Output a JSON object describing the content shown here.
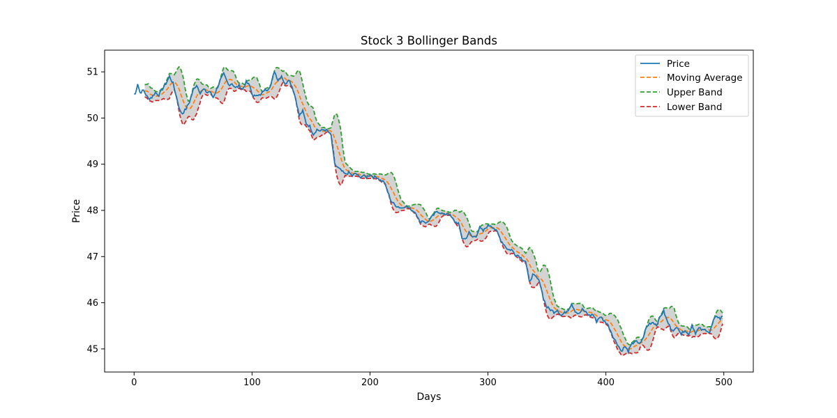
{
  "chart_data": {
    "type": "line",
    "title": "Stock 3 Bollinger Bands",
    "xlabel": "Days",
    "ylabel": "Price",
    "xlim": [
      -25,
      525
    ],
    "ylim": [
      44.5,
      51.47
    ],
    "x_ticks": [
      0,
      100,
      200,
      300,
      400,
      500
    ],
    "y_ticks": [
      45,
      46,
      47,
      48,
      49,
      50,
      51
    ],
    "grid": false,
    "legend_position": "top-right",
    "band_fill_color": "#d3d3d3",
    "window": 10,
    "x": {
      "start": 0,
      "end": 499,
      "step": 1
    },
    "price_anchors": [
      [
        0,
        50.52
      ],
      [
        1,
        50.52
      ],
      [
        3,
        50.75
      ],
      [
        5,
        50.55
      ],
      [
        8,
        50.6
      ],
      [
        12,
        50.42
      ],
      [
        15,
        50.45
      ],
      [
        18,
        50.55
      ],
      [
        21,
        50.5
      ],
      [
        24,
        50.63
      ],
      [
        27,
        50.75
      ],
      [
        30,
        50.9
      ],
      [
        33,
        50.75
      ],
      [
        36,
        50.45
      ],
      [
        39,
        50.15
      ],
      [
        41,
        50.1
      ],
      [
        44,
        50.2
      ],
      [
        47,
        50.35
      ],
      [
        50,
        50.6
      ],
      [
        53,
        50.72
      ],
      [
        56,
        50.55
      ],
      [
        59,
        50.62
      ],
      [
        62,
        50.55
      ],
      [
        64,
        50.58
      ],
      [
        67,
        50.45
      ],
      [
        70,
        50.62
      ],
      [
        73,
        50.82
      ],
      [
        76,
        50.95
      ],
      [
        80,
        50.72
      ],
      [
        83,
        50.75
      ],
      [
        86,
        50.65
      ],
      [
        89,
        50.7
      ],
      [
        92,
        50.62
      ],
      [
        95,
        50.78
      ],
      [
        98,
        50.7
      ],
      [
        101,
        50.45
      ],
      [
        104,
        50.52
      ],
      [
        107,
        50.48
      ],
      [
        110,
        50.6
      ],
      [
        113,
        50.62
      ],
      [
        116,
        50.72
      ],
      [
        119,
        51.02
      ],
      [
        122,
        50.82
      ],
      [
        125,
        50.92
      ],
      [
        128,
        50.72
      ],
      [
        131,
        50.85
      ],
      [
        134,
        50.68
      ],
      [
        137,
        50.42
      ],
      [
        140,
        50.05
      ],
      [
        143,
        50.15
      ],
      [
        146,
        49.88
      ],
      [
        149,
        49.82
      ],
      [
        152,
        49.65
      ],
      [
        155,
        49.75
      ],
      [
        158,
        49.72
      ],
      [
        161,
        49.75
      ],
      [
        164,
        49.72
      ],
      [
        167,
        49.62
      ],
      [
        170,
        49.0
      ],
      [
        173,
        48.92
      ],
      [
        176,
        48.85
      ],
      [
        179,
        48.78
      ],
      [
        182,
        48.82
      ],
      [
        185,
        48.75
      ],
      [
        188,
        48.8
      ],
      [
        191,
        48.72
      ],
      [
        194,
        48.75
      ],
      [
        197,
        48.72
      ],
      [
        200,
        48.78
      ],
      [
        203,
        48.72
      ],
      [
        206,
        48.72
      ],
      [
        209,
        48.65
      ],
      [
        212,
        48.62
      ],
      [
        215,
        48.4
      ],
      [
        218,
        48.2
      ],
      [
        221,
        48.12
      ],
      [
        224,
        48.08
      ],
      [
        227,
        48.05
      ],
      [
        230,
        48.1
      ],
      [
        233,
        48.05
      ],
      [
        236,
        48.0
      ],
      [
        239,
        47.95
      ],
      [
        242,
        47.75
      ],
      [
        245,
        47.78
      ],
      [
        248,
        47.72
      ],
      [
        251,
        47.82
      ],
      [
        254,
        47.9
      ],
      [
        257,
        47.98
      ],
      [
        260,
        47.95
      ],
      [
        263,
        47.9
      ],
      [
        266,
        47.95
      ],
      [
        269,
        47.85
      ],
      [
        272,
        47.75
      ],
      [
        275,
        47.72
      ],
      [
        278,
        47.4
      ],
      [
        281,
        47.38
      ],
      [
        284,
        47.52
      ],
      [
        287,
        47.42
      ],
      [
        290,
        47.45
      ],
      [
        293,
        47.62
      ],
      [
        296,
        47.55
      ],
      [
        299,
        47.65
      ],
      [
        302,
        47.68
      ],
      [
        305,
        47.62
      ],
      [
        308,
        47.52
      ],
      [
        311,
        47.35
      ],
      [
        314,
        47.25
      ],
      [
        317,
        47.15
      ],
      [
        320,
        47.15
      ],
      [
        323,
        47.05
      ],
      [
        326,
        47.02
      ],
      [
        329,
        46.95
      ],
      [
        332,
        46.9
      ],
      [
        335,
        46.45
      ],
      [
        338,
        46.6
      ],
      [
        341,
        46.55
      ],
      [
        344,
        46.45
      ],
      [
        347,
        46.1
      ],
      [
        350,
        45.9
      ],
      [
        353,
        45.85
      ],
      [
        356,
        45.8
      ],
      [
        359,
        45.85
      ],
      [
        362,
        45.72
      ],
      [
        365,
        45.78
      ],
      [
        368,
        45.85
      ],
      [
        371,
        45.98
      ],
      [
        374,
        45.82
      ],
      [
        377,
        45.75
      ],
      [
        380,
        45.85
      ],
      [
        383,
        45.8
      ],
      [
        386,
        45.72
      ],
      [
        389,
        45.75
      ],
      [
        392,
        45.6
      ],
      [
        395,
        45.7
      ],
      [
        398,
        45.62
      ],
      [
        401,
        45.55
      ],
      [
        404,
        45.4
      ],
      [
        407,
        45.22
      ],
      [
        410,
        45.1
      ],
      [
        413,
        44.95
      ],
      [
        416,
        45.05
      ],
      [
        419,
        44.95
      ],
      [
        422,
        45.1
      ],
      [
        425,
        45.18
      ],
      [
        428,
        45.1
      ],
      [
        431,
        45.2
      ],
      [
        434,
        45.45
      ],
      [
        437,
        45.55
      ],
      [
        440,
        45.58
      ],
      [
        443,
        45.52
      ],
      [
        446,
        45.7
      ],
      [
        449,
        45.82
      ],
      [
        452,
        45.6
      ],
      [
        455,
        45.45
      ],
      [
        458,
        45.4
      ],
      [
        461,
        45.48
      ],
      [
        464,
        45.32
      ],
      [
        467,
        45.42
      ],
      [
        470,
        45.3
      ],
      [
        473,
        45.52
      ],
      [
        476,
        45.35
      ],
      [
        479,
        45.45
      ],
      [
        482,
        45.4
      ],
      [
        485,
        45.42
      ],
      [
        488,
        45.35
      ],
      [
        491,
        45.6
      ],
      [
        494,
        45.72
      ],
      [
        497,
        45.65
      ],
      [
        499,
        45.72
      ]
    ],
    "series": [
      {
        "name": "Price",
        "color": "#1f77b4",
        "dash": "solid"
      },
      {
        "name": "Moving Average",
        "color": "#ff7f0e",
        "dash": "dashed"
      },
      {
        "name": "Upper Band",
        "color": "#2ca02c",
        "dash": "dashed"
      },
      {
        "name": "Lower Band",
        "color": "#d62728",
        "dash": "dashed"
      }
    ]
  }
}
